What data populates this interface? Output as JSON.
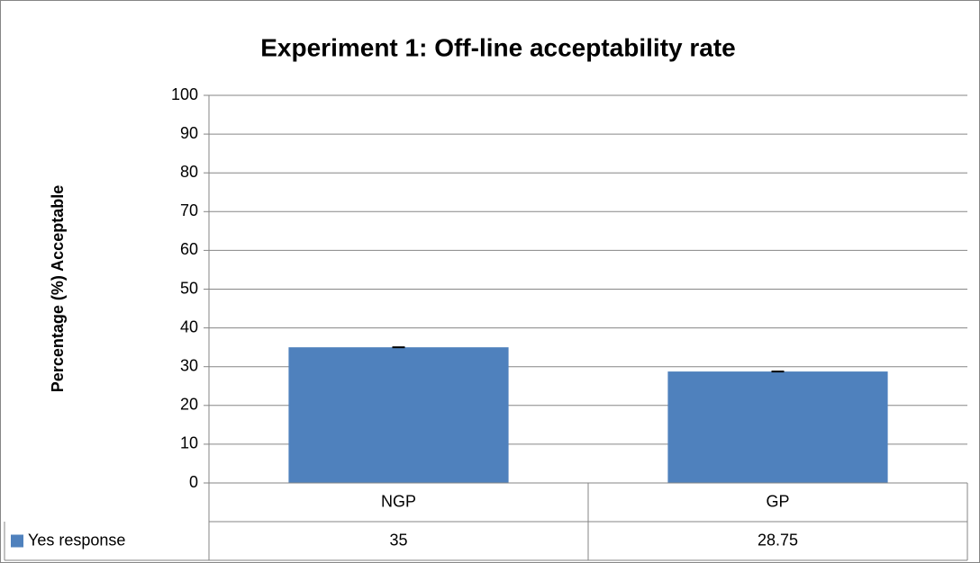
{
  "chart_data": {
    "type": "bar",
    "title": "Experiment 1: Off-line acceptability rate",
    "y_label": "Percentage (%) Acceptable",
    "categories": [
      "NGP",
      "GP"
    ],
    "series": [
      {
        "name": "Yes response",
        "color": "#4f81bd",
        "values": [
          35,
          28.75
        ]
      }
    ],
    "ylim": [
      0,
      100
    ],
    "yticks": [
      0,
      10,
      20,
      30,
      40,
      50,
      60,
      70,
      80,
      90,
      100
    ],
    "grid": true,
    "data_table": true
  }
}
